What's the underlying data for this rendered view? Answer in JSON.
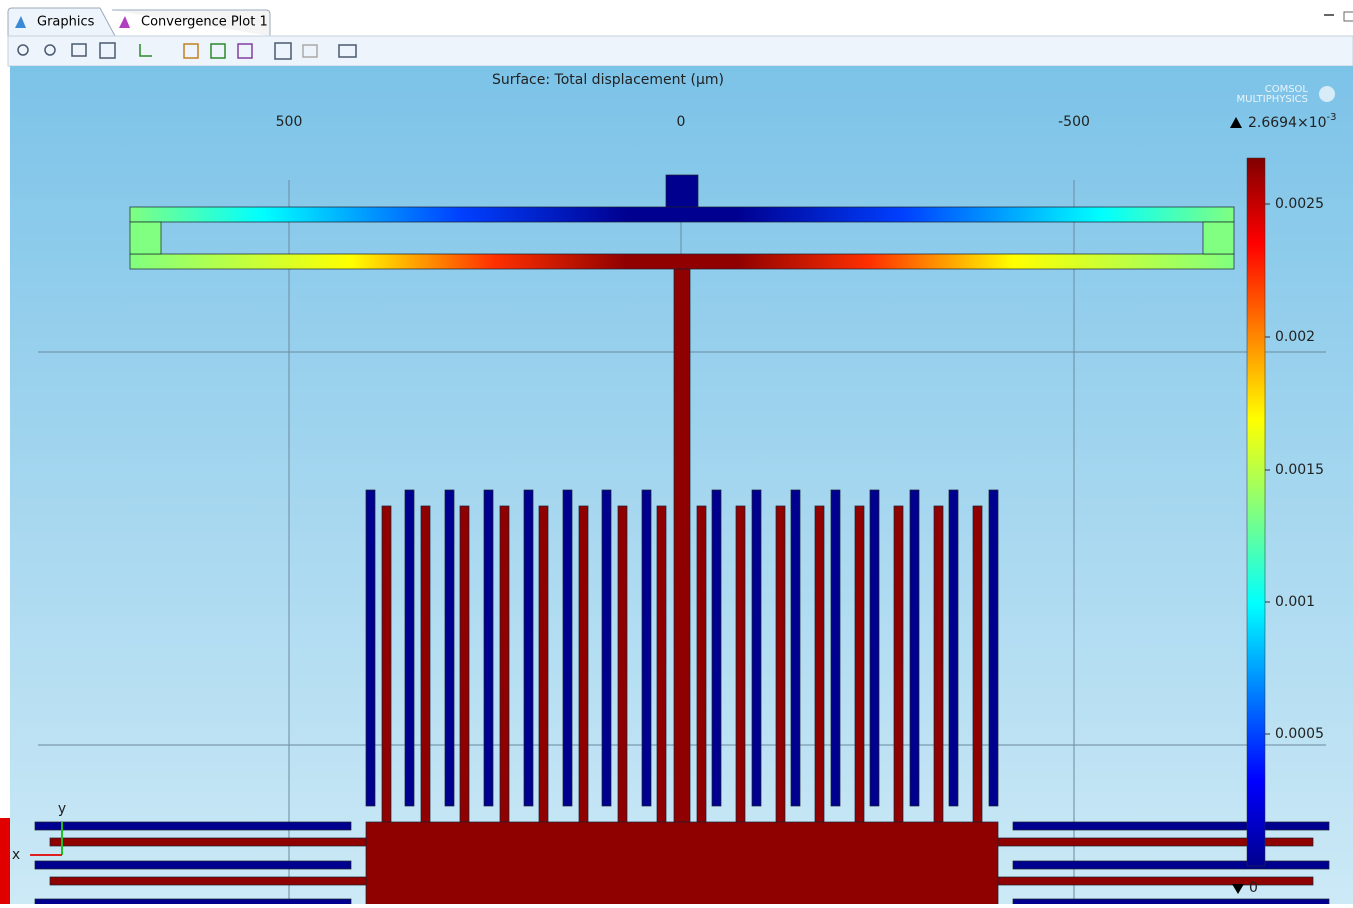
{
  "tabs": [
    "Graphics",
    "Convergence Plot 1"
  ],
  "plot": {
    "title": "Surface: Total displacement (µm)",
    "x_ticks": [
      "500",
      "0",
      "-500"
    ],
    "axis_labels": {
      "x": "x",
      "y": "y"
    },
    "logo": [
      "COMSOL",
      "MULTIPHYSICS"
    ]
  },
  "colorbar": {
    "max_label": {
      "base": "2.6694×10",
      "exponent": "-3"
    },
    "ticks": [
      "0.0025",
      "0.002",
      "0.0015",
      "0.001",
      "0.0005"
    ],
    "min_label": "0"
  }
}
